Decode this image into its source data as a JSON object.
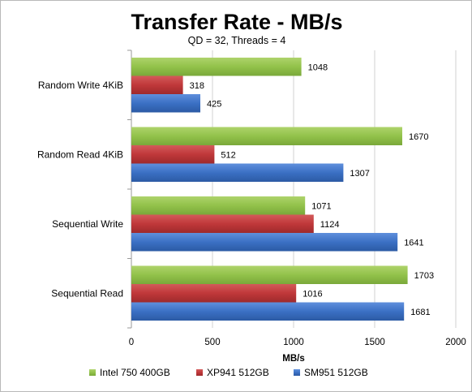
{
  "chart_data": {
    "type": "bar",
    "orientation": "horizontal",
    "title": "Transfer Rate - MB/s",
    "subtitle": "QD = 32, Threads = 4",
    "xlabel": "MB/s",
    "ylabel": "",
    "xlim": [
      0,
      2000
    ],
    "xticks": [
      0,
      500,
      1000,
      1500,
      2000
    ],
    "grid": true,
    "legend_position": "bottom",
    "categories": [
      "Random Write 4KiB",
      "Random Read 4KiB",
      "Sequential Write",
      "Sequential Read"
    ],
    "series": [
      {
        "name": "Intel 750 400GB",
        "color": "#92c24a",
        "values": [
          1048,
          1670,
          1071,
          1703
        ]
      },
      {
        "name": "XP941 512GB",
        "color": "#c0383a",
        "values": [
          318,
          512,
          1124,
          1016
        ]
      },
      {
        "name": "SM951 512GB",
        "color": "#3b70c4",
        "values": [
          425,
          1307,
          1641,
          1681
        ]
      }
    ]
  }
}
